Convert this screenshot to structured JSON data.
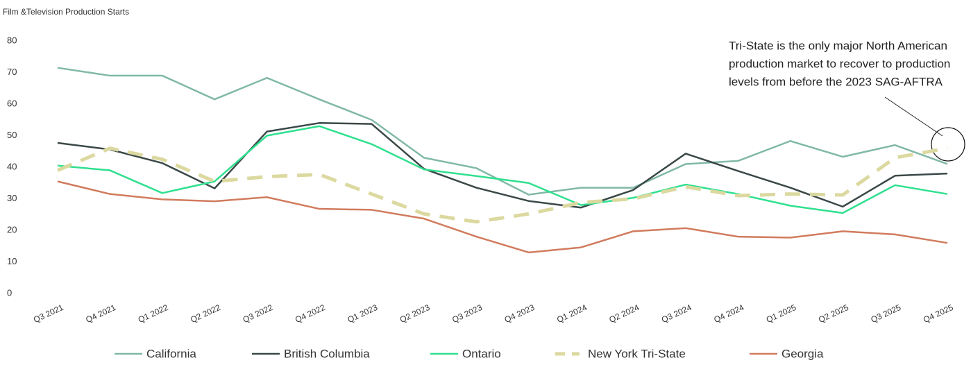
{
  "chart_data": {
    "type": "line",
    "title": "Film &Television Production Starts",
    "categories": [
      "Q3 2021",
      "Q4 2021",
      "Q1 2022",
      "Q2 2022",
      "Q3 2022",
      "Q4 2022",
      "Q1 2023",
      "Q2 2023",
      "Q3 2023",
      "Q4 2023",
      "Q1 2024",
      "Q2 2024",
      "Q3 2024",
      "Q4 2024",
      "Q1 2025",
      "Q2 2025",
      "Q3 2025",
      "Q4 2025"
    ],
    "series": [
      {
        "name": "California",
        "color": "#80b9a6",
        "values": [
          71.5,
          69,
          69,
          61.5,
          68.3,
          61.5,
          55,
          43,
          39.7,
          31.3,
          33.5,
          33.5,
          41,
          42,
          48.3,
          43.3,
          47,
          41
        ]
      },
      {
        "name": "British Columbia",
        "color": "#3b4848",
        "values": [
          47.7,
          45.6,
          41.3,
          33.3,
          51.3,
          54,
          53.7,
          39.5,
          33.5,
          29.3,
          27.2,
          32.8,
          44.3,
          38.8,
          33.5,
          27.5,
          37.3,
          38
        ]
      },
      {
        "name": "Ontario",
        "color": "#2fe08f",
        "values": [
          40.5,
          39,
          31.8,
          35.5,
          50,
          53,
          47.3,
          39.3,
          37.2,
          35,
          28,
          30.3,
          34.5,
          31.5,
          27.8,
          25.5,
          34.3,
          31.5
        ]
      },
      {
        "name": "New York Tri-State",
        "color": "#dcd9a0",
        "dashed": true,
        "values": [
          39,
          46,
          42.5,
          35.5,
          37,
          37.7,
          31.5,
          25.2,
          22.7,
          25.2,
          28.8,
          30,
          33.8,
          31,
          31.5,
          31.2,
          43,
          46
        ]
      },
      {
        "name": "Georgia",
        "color": "#d17b5d",
        "values": [
          35.5,
          31.5,
          29.8,
          29.2,
          30.5,
          26.8,
          26.5,
          23.7,
          18,
          13,
          14.6,
          19.7,
          20.7,
          18,
          17.7,
          19.7,
          18.7,
          16
        ]
      }
    ],
    "ylim": [
      0,
      80
    ],
    "yticks": [
      0,
      10,
      20,
      30,
      40,
      50,
      60,
      70,
      80
    ],
    "annotation": [
      "Tri-State is the only major North American",
      "production market to recover to production",
      "levels from before the 2023 SAG-AFTRA"
    ]
  }
}
